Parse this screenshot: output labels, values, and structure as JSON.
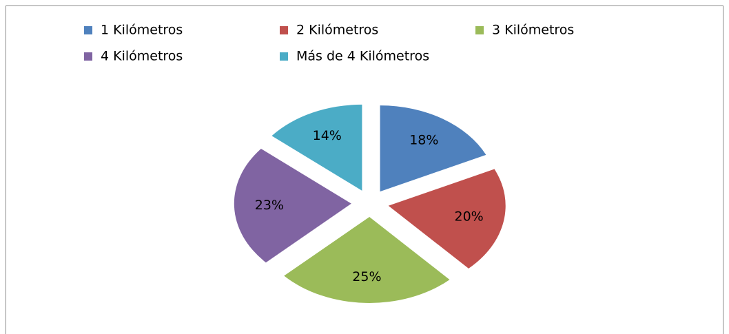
{
  "chart_data": {
    "type": "pie",
    "categories": [
      "1 Kilómetros",
      "2  Kilómetros",
      "3  Kilómetros",
      "4 Kilómetros",
      "Más de 4  Kilómetros"
    ],
    "values": [
      18,
      20,
      25,
      23,
      14
    ],
    "value_labels": [
      "18%",
      "20%",
      "25%",
      "23%",
      "14%"
    ],
    "colors": [
      "#4f81bd",
      "#c0504d",
      "#9bbb59",
      "#8064a2",
      "#4bacc6"
    ],
    "legend": "top"
  }
}
